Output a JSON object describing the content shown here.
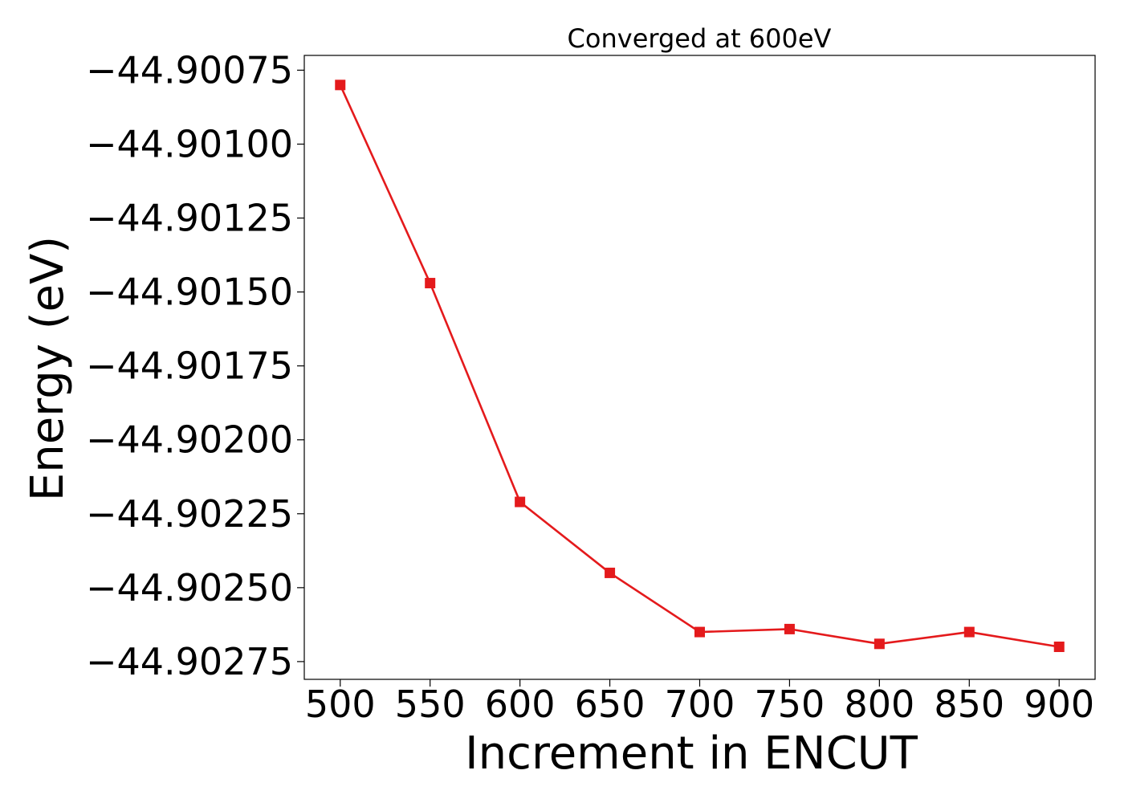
{
  "chart_data": {
    "type": "line",
    "title": "Converged at 600eV",
    "xlabel": "Increment in ENCUT",
    "ylabel": "Energy (eV)",
    "x": [
      500,
      550,
      600,
      650,
      700,
      750,
      800,
      850,
      900
    ],
    "series": [
      {
        "values": [
          -44.9008,
          -44.90147,
          -44.90221,
          -44.90245,
          -44.90265,
          -44.90264,
          -44.90269,
          -44.90265,
          -44.9027
        ]
      }
    ],
    "xlim": [
      480,
      920
    ],
    "ylim": [
      -44.90281,
      -44.9007
    ],
    "x_ticks": [
      500,
      550,
      600,
      650,
      700,
      750,
      800,
      850,
      900
    ],
    "y_ticks": [
      -44.90075,
      -44.901,
      -44.90125,
      -44.9015,
      -44.90175,
      -44.902,
      -44.90225,
      -44.9025,
      -44.90275
    ],
    "x_tick_labels": [
      "500",
      "550",
      "600",
      "650",
      "700",
      "750",
      "800",
      "850",
      "900"
    ],
    "y_tick_labels": [
      "−44.90075",
      "−44.90100",
      "−44.90125",
      "−44.90150",
      "−44.90175",
      "−44.90200",
      "−44.90225",
      "−44.90250",
      "−44.90275"
    ],
    "marker": "square",
    "line_color": "#e41a1c",
    "marker_color": "#e41a1c",
    "grid": false,
    "legend": "none"
  }
}
